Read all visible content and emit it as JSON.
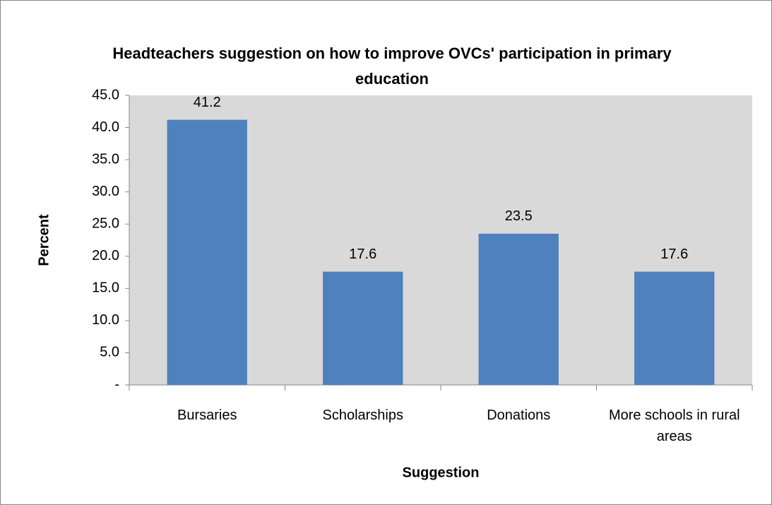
{
  "chart_data": {
    "type": "bar",
    "title": "Headteachers suggestion on how to improve OVCs' participation in primary education",
    "x_label": "Suggestion",
    "y_label": "Percent",
    "categories": [
      "Bursaries",
      "Scholarships",
      "Donations",
      "More schools in rural areas"
    ],
    "values": [
      41.2,
      17.6,
      23.5,
      17.6
    ],
    "color": "#4f81bd",
    "ylim": [
      0,
      45
    ],
    "yticks": [
      {
        "value": 0,
        "label": "-"
      },
      {
        "value": 5,
        "label": "5.0"
      },
      {
        "value": 10,
        "label": "10.0"
      },
      {
        "value": 15,
        "label": "15.0"
      },
      {
        "value": 20,
        "label": "20.0"
      },
      {
        "value": 25,
        "label": "25.0"
      },
      {
        "value": 30,
        "label": "30.0"
      },
      {
        "value": 35,
        "label": "35.0"
      },
      {
        "value": 40,
        "label": "40.0"
      },
      {
        "value": 45,
        "label": "45.0"
      }
    ],
    "grid": false
  }
}
